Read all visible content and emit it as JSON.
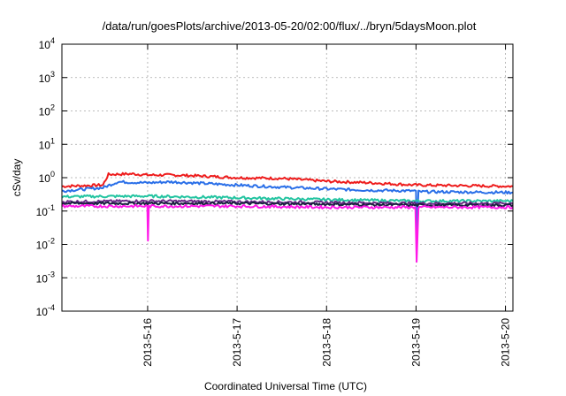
{
  "chart_data": {
    "type": "line",
    "title": "/data/run/goesPlots/archive/2013-05-20/02:00/flux/../bryn/5daysMoon.plot",
    "xlabel": "Coordinated Universal Time (UTC)",
    "ylabel": "cSv/day",
    "yscale": "log",
    "ylim": [
      0.0001,
      10000
    ],
    "y_ticks": [
      {
        "base": "10",
        "exp": "-4"
      },
      {
        "base": "10",
        "exp": "-3"
      },
      {
        "base": "10",
        "exp": "-2"
      },
      {
        "base": "10",
        "exp": "-1"
      },
      {
        "base": "10",
        "exp": "0"
      },
      {
        "base": "10",
        "exp": "1"
      },
      {
        "base": "10",
        "exp": "2"
      },
      {
        "base": "10",
        "exp": "3"
      },
      {
        "base": "10",
        "exp": "4"
      }
    ],
    "xlim": [
      "2013-05-15 01:00",
      "2013-05-20 02:00"
    ],
    "x_ticks": [
      "2013-5-16",
      "2013-5-17",
      "2013-5-18",
      "2013-5-19",
      "2013-5-20"
    ],
    "grid": "dashed",
    "legend": "none",
    "series": [
      {
        "color": "#ee1c1c",
        "points": [
          [
            "2013-05-15 01:00",
            0.55
          ],
          [
            "2013-05-15 12:00",
            0.6
          ],
          [
            "2013-05-15 13:30",
            1.25
          ],
          [
            "2013-05-15 20:00",
            1.3
          ],
          [
            "2013-05-16 00:00",
            1.2
          ],
          [
            "2013-05-16 06:00",
            1.2
          ],
          [
            "2013-05-16 12:00",
            1.15
          ],
          [
            "2013-05-17 00:00",
            1.0
          ],
          [
            "2013-05-17 12:00",
            0.95
          ],
          [
            "2013-05-18 00:00",
            0.78
          ],
          [
            "2013-05-18 12:00",
            0.7
          ],
          [
            "2013-05-19 00:00",
            0.6
          ],
          [
            "2013-05-20 02:00",
            0.55
          ]
        ]
      },
      {
        "color": "#2a6fe8",
        "points": [
          [
            "2013-05-15 01:00",
            0.4
          ],
          [
            "2013-05-15 12:00",
            0.5
          ],
          [
            "2013-05-15 16:00",
            0.75
          ],
          [
            "2013-05-16 00:00",
            0.7
          ],
          [
            "2013-05-16 06:00",
            0.75
          ],
          [
            "2013-05-16 12:00",
            0.7
          ],
          [
            "2013-05-17 00:00",
            0.6
          ],
          [
            "2013-05-17 12:00",
            0.52
          ],
          [
            "2013-05-18 00:00",
            0.46
          ],
          [
            "2013-05-18 12:00",
            0.42
          ],
          [
            "2013-05-19 00:00",
            0.4
          ],
          [
            "2013-05-19 00:10",
            0.02
          ],
          [
            "2013-05-19 00:40",
            0.38
          ],
          [
            "2013-05-20 02:00",
            0.36
          ]
        ]
      },
      {
        "color": "#22c4a0",
        "points": [
          [
            "2013-05-15 01:00",
            0.27
          ],
          [
            "2013-05-16 00:00",
            0.28
          ],
          [
            "2013-05-17 00:00",
            0.25
          ],
          [
            "2013-05-18 00:00",
            0.22
          ],
          [
            "2013-05-19 00:00",
            0.2
          ],
          [
            "2013-05-20 02:00",
            0.2
          ]
        ]
      },
      {
        "color": "#6a2a86",
        "points": [
          [
            "2013-05-15 01:00",
            0.19
          ],
          [
            "2013-05-16 00:00",
            0.2
          ],
          [
            "2013-05-17 00:00",
            0.19
          ],
          [
            "2013-05-18 00:00",
            0.18
          ],
          [
            "2013-05-19 00:00",
            0.17
          ],
          [
            "2013-05-20 02:00",
            0.17
          ]
        ]
      },
      {
        "color": "#1a2040",
        "points": [
          [
            "2013-05-15 01:00",
            0.17
          ],
          [
            "2013-05-16 00:00",
            0.17
          ],
          [
            "2013-05-17 00:00",
            0.17
          ],
          [
            "2013-05-18 00:00",
            0.16
          ],
          [
            "2013-05-19 00:00",
            0.15
          ],
          [
            "2013-05-20 02:00",
            0.15
          ]
        ]
      },
      {
        "color": "#ff18e8",
        "points": [
          [
            "2013-05-15 01:00",
            0.14
          ],
          [
            "2013-05-15 23:55",
            0.14
          ],
          [
            "2013-05-16 00:05",
            0.013
          ],
          [
            "2013-05-16 00:20",
            0.14
          ],
          [
            "2013-05-17 00:00",
            0.14
          ],
          [
            "2013-05-18 00:00",
            0.13
          ],
          [
            "2013-05-18 23:50",
            0.13
          ],
          [
            "2013-05-19 00:10",
            0.003
          ],
          [
            "2013-05-19 00:40",
            0.13
          ],
          [
            "2013-05-20 02:00",
            0.13
          ]
        ]
      }
    ]
  }
}
